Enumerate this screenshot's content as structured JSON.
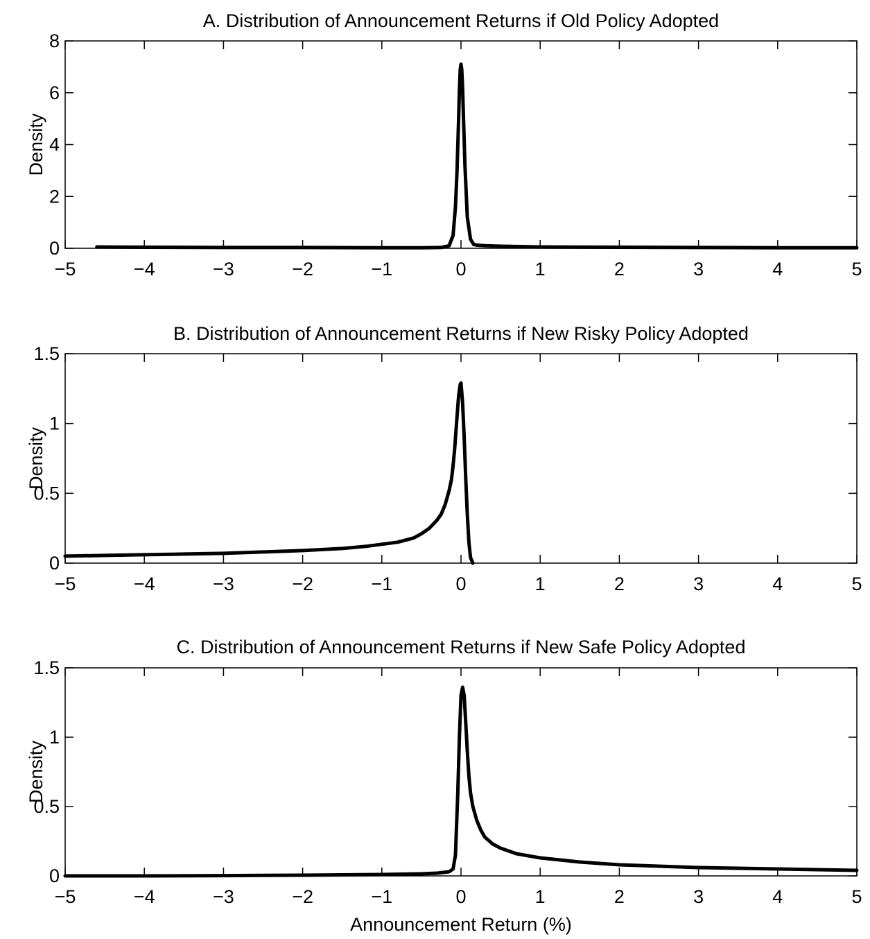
{
  "figure": {
    "xlabel": "Announcement Return (%)"
  },
  "chart_data": [
    {
      "type": "line",
      "title": "A. Distribution of Announcement Returns if Old Policy Adopted",
      "xlabel": "",
      "ylabel": "Density",
      "xlim": [
        -5,
        5
      ],
      "ylim": [
        0,
        8
      ],
      "xticks": [
        "−5",
        "−4",
        "−3",
        "−2",
        "−1",
        "0",
        "1",
        "2",
        "3",
        "4",
        "5"
      ],
      "yticks": [
        "0",
        "2",
        "4",
        "6",
        "8"
      ],
      "grid": false,
      "legend": "none",
      "series": [
        {
          "x": [
            -4.6,
            -4.0,
            -3.0,
            -2.0,
            -1.0,
            -0.5,
            -0.25,
            -0.15,
            -0.1,
            -0.07,
            -0.05,
            -0.03,
            -0.02,
            -0.01,
            0.0,
            0.01,
            0.02,
            0.03,
            0.05,
            0.08,
            0.12,
            0.16,
            0.2,
            0.3,
            0.5,
            1.0,
            2.0,
            3.0,
            4.0,
            5.0
          ],
          "values": [
            0.05,
            0.04,
            0.03,
            0.03,
            0.02,
            0.02,
            0.03,
            0.1,
            0.5,
            1.6,
            3.0,
            5.0,
            6.1,
            6.9,
            7.1,
            6.9,
            6.2,
            5.2,
            3.2,
            1.2,
            0.35,
            0.15,
            0.12,
            0.1,
            0.08,
            0.05,
            0.04,
            0.03,
            0.02,
            0.02
          ]
        }
      ]
    },
    {
      "type": "line",
      "title": "B. Distribution of Announcement Returns if New Risky Policy Adopted",
      "xlabel": "",
      "ylabel": "Density",
      "xlim": [
        -5,
        5
      ],
      "ylim": [
        0,
        1.5
      ],
      "xticks": [
        "−5",
        "−4",
        "−3",
        "−2",
        "−1",
        "0",
        "1",
        "2",
        "3",
        "4",
        "5"
      ],
      "yticks": [
        "0",
        "0.5",
        "1",
        "1.5"
      ],
      "grid": false,
      "legend": "none",
      "series": [
        {
          "x": [
            -5.0,
            -4.5,
            -4.0,
            -3.5,
            -3.0,
            -2.5,
            -2.0,
            -1.5,
            -1.2,
            -1.0,
            -0.8,
            -0.6,
            -0.5,
            -0.4,
            -0.3,
            -0.25,
            -0.2,
            -0.15,
            -0.12,
            -0.1,
            -0.08,
            -0.05,
            -0.03,
            -0.01,
            0.0,
            0.02,
            0.04,
            0.06,
            0.08,
            0.1,
            0.12,
            0.15
          ],
          "values": [
            0.05,
            0.055,
            0.06,
            0.065,
            0.07,
            0.08,
            0.09,
            0.105,
            0.12,
            0.135,
            0.15,
            0.18,
            0.21,
            0.25,
            0.31,
            0.35,
            0.42,
            0.52,
            0.6,
            0.7,
            0.82,
            1.05,
            1.2,
            1.28,
            1.29,
            1.15,
            0.9,
            0.6,
            0.35,
            0.15,
            0.04,
            0.0
          ]
        }
      ]
    },
    {
      "type": "line",
      "title": "C. Distribution of Announcement Returns if New Safe Policy Adopted",
      "xlabel": "Announcement Return (%)",
      "ylabel": "Density",
      "xlim": [
        -5,
        5
      ],
      "ylim": [
        0,
        1.5
      ],
      "xticks": [
        "−5",
        "−4",
        "−3",
        "−2",
        "−1",
        "0",
        "1",
        "2",
        "3",
        "4",
        "5"
      ],
      "yticks": [
        "0",
        "0.5",
        "1",
        "1.5"
      ],
      "grid": false,
      "legend": "none",
      "series": [
        {
          "x": [
            -5.0,
            -4.0,
            -3.0,
            -2.0,
            -1.0,
            -0.5,
            -0.3,
            -0.15,
            -0.1,
            -0.07,
            -0.04,
            -0.02,
            0.0,
            0.02,
            0.04,
            0.06,
            0.08,
            0.1,
            0.12,
            0.15,
            0.2,
            0.25,
            0.3,
            0.4,
            0.5,
            0.7,
            1.0,
            1.5,
            2.0,
            2.5,
            3.0,
            3.5,
            4.0,
            4.5,
            5.0
          ],
          "values": [
            0.0,
            0.0,
            0.002,
            0.005,
            0.01,
            0.015,
            0.02,
            0.03,
            0.05,
            0.15,
            0.6,
            1.0,
            1.3,
            1.36,
            1.3,
            1.1,
            0.9,
            0.72,
            0.6,
            0.5,
            0.4,
            0.33,
            0.28,
            0.23,
            0.2,
            0.16,
            0.13,
            0.1,
            0.08,
            0.07,
            0.06,
            0.055,
            0.05,
            0.045,
            0.04
          ]
        }
      ]
    }
  ]
}
